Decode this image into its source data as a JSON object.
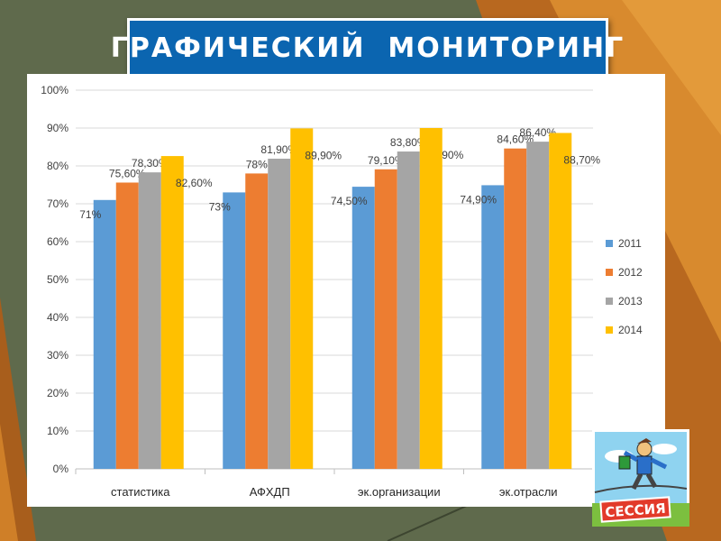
{
  "slide": {
    "title": "ГРАФИЧЕСКИЙ  МОНИТОРИНГ"
  },
  "colors": {
    "background": "#5f6a4c",
    "accent_orange": "#d27a1f",
    "title_box": "#0b65b0",
    "series": [
      "#5b9bd5",
      "#ed7d31",
      "#a5a5a5",
      "#ffc000"
    ]
  },
  "chart_data": {
    "type": "bar",
    "categories": [
      "статистика",
      "АФХДП",
      "эк.организации",
      "эк.отрасли"
    ],
    "series": [
      {
        "name": "2011",
        "values": [
          71.0,
          73.0,
          74.5,
          74.9
        ],
        "labels": [
          "71%",
          "73%",
          "74,50%",
          "74,90%"
        ]
      },
      {
        "name": "2012",
        "values": [
          75.6,
          78.0,
          79.1,
          84.6
        ],
        "labels": [
          "75,60%",
          "78%",
          "79,10%",
          "84,60%"
        ]
      },
      {
        "name": "2013",
        "values": [
          78.3,
          81.9,
          83.8,
          86.4
        ],
        "labels": [
          "78,30%",
          "81,90%",
          "83,80%",
          "86,40%"
        ]
      },
      {
        "name": "2014",
        "values": [
          82.6,
          89.9,
          90.0,
          88.7
        ],
        "labels": [
          "82,60%",
          "89,90%",
          "90%",
          "88,70%"
        ]
      }
    ],
    "ylim": [
      0,
      100
    ],
    "yticks": [
      "0%",
      "10%",
      "20%",
      "30%",
      "40%",
      "50%",
      "60%",
      "70%",
      "80%",
      "90%",
      "100%"
    ],
    "grid": true,
    "legend_position": "right",
    "xlabel": "",
    "ylabel": ""
  },
  "image": {
    "sign_text": "СЕССИЯ",
    "icon": "student-tightrope-session-clipart"
  }
}
